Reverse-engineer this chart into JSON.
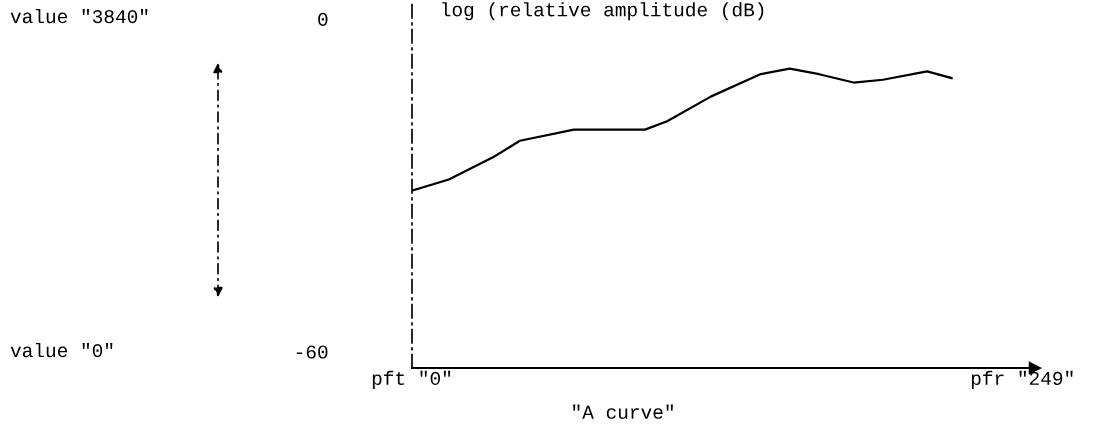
{
  "chart_data": {
    "type": "line",
    "ylabel": "log (relative amplitude (dB)",
    "xlabel": "\"A curve\"",
    "annotations": [
      "value \"3840\"",
      "value \"0\""
    ],
    "x": [
      0,
      15,
      33,
      44,
      66,
      95,
      104,
      122,
      142,
      154,
      166,
      180,
      192,
      210,
      220
    ],
    "series": [
      {
        "color": "#000000",
        "values": [
          -31,
          -29,
          -25,
          -22,
          -20,
          -20,
          -18.5,
          -14,
          -10,
          -9,
          -10,
          -11.5,
          -11,
          -9.5,
          -10.7
        ]
      }
    ],
    "xlim": [
      0,
      254
    ],
    "ylim": [
      -63,
      3
    ],
    "xticks": [
      {
        "value": 0,
        "label": "pft \"0\""
      },
      {
        "value": 249,
        "label": "pfr \"249\""
      }
    ],
    "yticks": [
      0,
      -60
    ],
    "grid": false,
    "legend": false,
    "marker": "none",
    "line_style": "solid"
  }
}
